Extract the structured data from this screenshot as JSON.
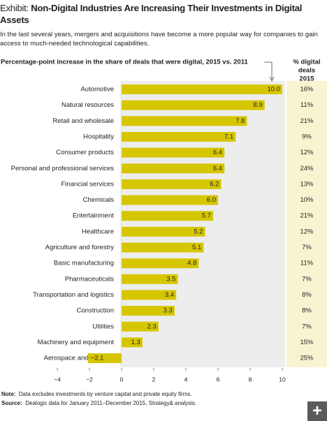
{
  "chart_data": {
    "type": "bar",
    "orientation": "horizontal",
    "exhibit_label": "Exhibit:",
    "title": "Non-Digital Industries Are Increasing Their Investments in Digital Assets",
    "subtitle": "In the last several years, mergers and acquisitions have become a more popular way for companies to gain access to much-needed technological capabilities.",
    "axis_header": "Percentage-point increase in the share of deals that were digital, 2015 vs. 2011",
    "categories": [
      "Automotive",
      "Natural resources",
      "Retail and wholesale",
      "Hospitality",
      "Consumer products",
      "Personal and professional services",
      "Financial services",
      "Chemicals",
      "Entertainment",
      "Healthcare",
      "Agriculture and forestry",
      "Basic manufacturing",
      "Pharmaceuticals",
      "Transportation and logistics",
      "Construction",
      "Utilities",
      "Machinery and equipment",
      "Aerospace and defense"
    ],
    "values": [
      10.0,
      8.9,
      7.8,
      7.1,
      6.4,
      6.4,
      6.2,
      6.0,
      5.7,
      5.2,
      5.1,
      4.8,
      3.5,
      3.4,
      3.3,
      2.3,
      1.3,
      -2.1
    ],
    "value_labels": [
      "10.0",
      "8.9",
      "7.8",
      "7.1",
      "6.4",
      "6.4",
      "6.2",
      "6.0",
      "5.7",
      "5.2",
      "5.1",
      "4.8",
      "3.5",
      "3.4",
      "3.3",
      "2.3",
      "1.3",
      "−2.1"
    ],
    "color": "#d6c600",
    "xlim": [
      -4,
      10
    ],
    "xticks": [
      {
        "value": -4,
        "label": "−4"
      },
      {
        "value": -2,
        "label": "−2"
      },
      0,
      2,
      4,
      6,
      8,
      10
    ],
    "grid": false,
    "side_column": {
      "title_lines": [
        "% digital",
        "deals",
        "2015"
      ],
      "values": [
        "16%",
        "11%",
        "21%",
        "9%",
        "12%",
        "24%",
        "13%",
        "10%",
        "21%",
        "12%",
        "7%",
        "11%",
        "7%",
        "8%",
        "8%",
        "7%",
        "15%",
        "25%"
      ]
    },
    "note_label": "Note:",
    "note": "Data excludes investments by venture capital and private equity firms.",
    "source_label": "Source:",
    "source": "Dealogic data for January 2011–December 2015, Strategy& analysis."
  }
}
